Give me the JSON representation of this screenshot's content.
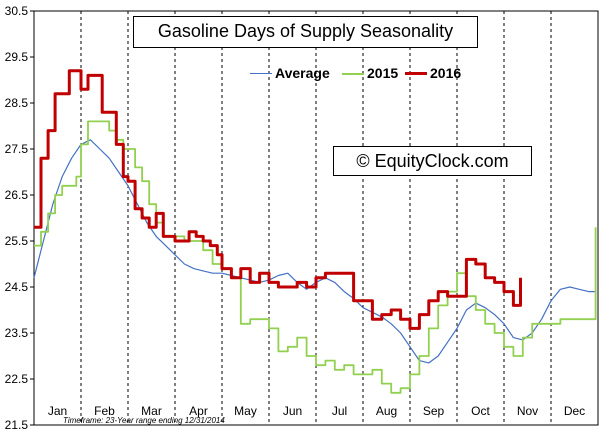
{
  "chart_data": {
    "type": "line",
    "title": "Gasoline Days of Supply Seasonality",
    "watermark": "© EquityClock.com",
    "footnote": "Timeframe: 23-Year range ending 12/31/2014",
    "ylim": [
      21.5,
      30.5
    ],
    "y_ticks": [
      "30.5",
      "29.5",
      "28.5",
      "27.5",
      "26.5",
      "25.5",
      "24.5",
      "23.5",
      "22.5",
      "21.5"
    ],
    "x_range": [
      0,
      12
    ],
    "month_labels": [
      "Jan",
      "Feb",
      "Mar",
      "Apr",
      "May",
      "Jun",
      "Jul",
      "Aug",
      "Sep",
      "Oct",
      "Nov",
      "Dec"
    ],
    "grid": "vertical dashed lines at month boundaries",
    "legend_position": "top-center",
    "series": [
      {
        "name": "Average",
        "color": "#4472C4",
        "style": "smooth",
        "x": [
          0.0,
          0.2,
          0.4,
          0.6,
          0.8,
          1.0,
          1.2,
          1.4,
          1.6,
          1.8,
          2.0,
          2.2,
          2.4,
          2.6,
          2.8,
          3.0,
          3.2,
          3.4,
          3.6,
          3.8,
          4.0,
          4.2,
          4.4,
          4.6,
          4.8,
          5.0,
          5.2,
          5.4,
          5.6,
          5.8,
          6.0,
          6.2,
          6.4,
          6.6,
          6.8,
          7.0,
          7.2,
          7.4,
          7.6,
          7.8,
          8.0,
          8.2,
          8.4,
          8.6,
          8.8,
          9.0,
          9.2,
          9.4,
          9.6,
          9.8,
          10.0,
          10.2,
          10.4,
          10.6,
          10.8,
          11.0,
          11.2,
          11.4,
          11.6,
          11.8,
          11.95
        ],
        "y": [
          24.7,
          25.5,
          26.3,
          26.9,
          27.3,
          27.6,
          27.7,
          27.5,
          27.3,
          27.0,
          26.7,
          26.3,
          25.9,
          25.6,
          25.4,
          25.2,
          25.0,
          24.9,
          24.85,
          24.8,
          24.8,
          24.75,
          24.7,
          24.65,
          24.6,
          24.65,
          24.75,
          24.8,
          24.6,
          24.45,
          24.6,
          24.7,
          24.6,
          24.4,
          24.25,
          24.05,
          23.95,
          23.85,
          23.7,
          23.5,
          23.2,
          22.9,
          22.85,
          23.0,
          23.3,
          23.6,
          24.0,
          24.15,
          24.05,
          23.9,
          23.7,
          23.4,
          23.35,
          23.5,
          23.8,
          24.2,
          24.45,
          24.5,
          24.45,
          24.4,
          24.4
        ]
      },
      {
        "name": "2015",
        "color": "#92D050",
        "style": "step",
        "x": [
          0.0,
          0.15,
          0.3,
          0.45,
          0.6,
          0.75,
          0.9,
          1.0,
          1.15,
          1.3,
          1.45,
          1.6,
          1.75,
          1.9,
          2.0,
          2.15,
          2.3,
          2.45,
          2.6,
          2.75,
          2.9,
          3.0,
          3.2,
          3.4,
          3.6,
          3.8,
          4.0,
          4.2,
          4.4,
          4.6,
          4.8,
          5.0,
          5.2,
          5.4,
          5.6,
          5.8,
          6.0,
          6.2,
          6.4,
          6.6,
          6.8,
          7.0,
          7.2,
          7.4,
          7.6,
          7.8,
          8.0,
          8.2,
          8.4,
          8.6,
          8.8,
          9.0,
          9.2,
          9.4,
          9.6,
          9.8,
          10.0,
          10.2,
          10.4,
          10.6,
          10.8,
          11.0,
          11.2,
          11.4,
          11.6,
          11.8,
          11.95
        ],
        "y": [
          25.4,
          25.7,
          26.1,
          26.5,
          26.7,
          26.7,
          26.9,
          27.6,
          28.1,
          28.1,
          28.1,
          27.9,
          27.7,
          27.5,
          27.5,
          27.1,
          26.8,
          26.3,
          25.9,
          25.6,
          25.6,
          25.6,
          25.5,
          25.5,
          25.3,
          25.0,
          24.9,
          24.7,
          23.7,
          23.8,
          23.8,
          23.6,
          23.1,
          23.2,
          23.4,
          23.0,
          22.8,
          22.9,
          22.7,
          22.8,
          22.6,
          22.6,
          22.7,
          22.4,
          22.2,
          22.3,
          22.6,
          23.0,
          23.6,
          24.1,
          24.4,
          24.8,
          24.3,
          24.0,
          23.7,
          23.5,
          23.2,
          23.0,
          23.4,
          23.7,
          23.7,
          23.7,
          23.8,
          23.8,
          23.8,
          23.8,
          25.8
        ]
      },
      {
        "name": "2016",
        "color": "#C00000",
        "style": "step",
        "x": [
          0.0,
          0.15,
          0.3,
          0.45,
          0.6,
          0.75,
          0.9,
          1.0,
          1.15,
          1.3,
          1.45,
          1.6,
          1.75,
          1.9,
          2.0,
          2.15,
          2.3,
          2.45,
          2.6,
          2.75,
          2.9,
          3.0,
          3.15,
          3.3,
          3.45,
          3.6,
          3.75,
          3.9,
          4.0,
          4.2,
          4.4,
          4.6,
          4.8,
          5.0,
          5.2,
          5.4,
          5.6,
          5.8,
          6.0,
          6.2,
          6.4,
          6.6,
          6.8,
          7.0,
          7.2,
          7.4,
          7.6,
          7.8,
          8.0,
          8.2,
          8.4,
          8.6,
          8.8,
          9.0,
          9.2,
          9.4,
          9.6,
          9.8,
          10.0,
          10.2,
          10.35
        ],
        "y": [
          25.8,
          27.3,
          27.9,
          28.7,
          28.7,
          29.2,
          29.2,
          28.8,
          29.1,
          29.1,
          28.3,
          28.3,
          27.6,
          26.9,
          26.8,
          26.2,
          26.0,
          25.8,
          26.1,
          25.6,
          25.6,
          25.5,
          25.5,
          25.7,
          25.6,
          25.5,
          25.4,
          25.2,
          24.9,
          24.7,
          24.9,
          24.6,
          24.8,
          24.6,
          24.5,
          24.5,
          24.6,
          24.5,
          24.7,
          24.8,
          24.8,
          24.8,
          24.2,
          24.2,
          23.8,
          23.9,
          24.0,
          23.8,
          23.6,
          23.9,
          24.2,
          24.4,
          24.3,
          24.3,
          25.1,
          25.0,
          24.7,
          24.6,
          24.4,
          24.1,
          24.7
        ]
      }
    ]
  }
}
